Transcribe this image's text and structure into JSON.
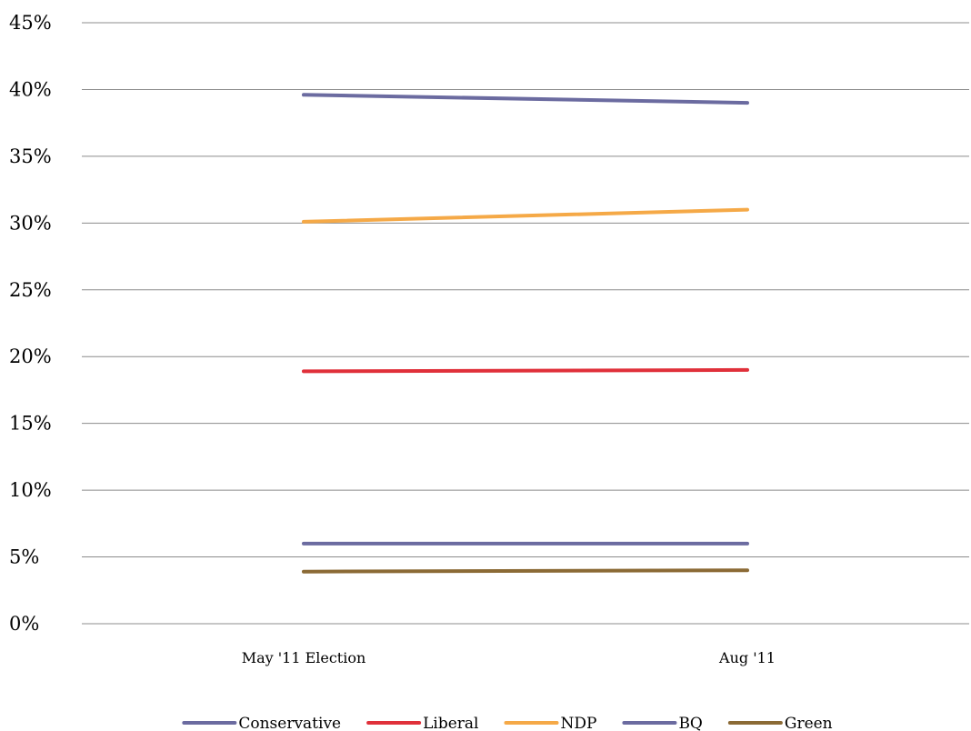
{
  "chart_data": {
    "type": "line",
    "title": "",
    "xlabel": "",
    "ylabel": "",
    "categories": [
      "May '11 Election",
      "Aug '11"
    ],
    "ylim": [
      0,
      45
    ],
    "ytick_step": 5,
    "ytick_format": "percent",
    "grid": true,
    "legend_position": "bottom",
    "series": [
      {
        "name": "Conservative",
        "color": "#6b6ba0",
        "values": [
          39.6,
          39.0
        ]
      },
      {
        "name": "Liberal",
        "color": "#e0303a",
        "values": [
          18.9,
          19.0
        ]
      },
      {
        "name": "NDP",
        "color": "#f5a947",
        "values": [
          30.1,
          31.0
        ]
      },
      {
        "name": "BQ",
        "color": "#6b6ba0",
        "values": [
          6.0,
          6.0
        ]
      },
      {
        "name": "Green",
        "color": "#8b6a35",
        "values": [
          3.9,
          4.0
        ]
      }
    ]
  }
}
